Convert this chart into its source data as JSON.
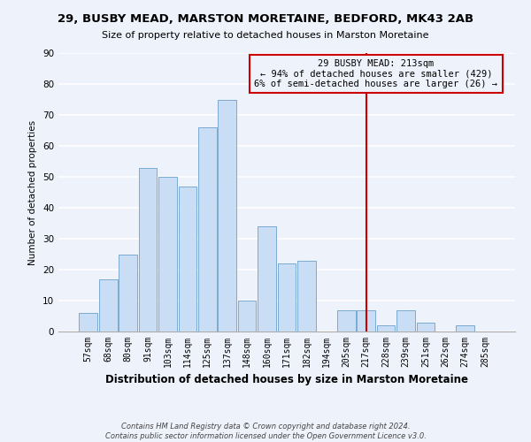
{
  "title": "29, BUSBY MEAD, MARSTON MORETAINE, BEDFORD, MK43 2AB",
  "subtitle": "Size of property relative to detached houses in Marston Moretaine",
  "xlabel": "Distribution of detached houses by size in Marston Moretaine",
  "ylabel": "Number of detached properties",
  "bin_labels": [
    "57sqm",
    "68sqm",
    "80sqm",
    "91sqm",
    "103sqm",
    "114sqm",
    "125sqm",
    "137sqm",
    "148sqm",
    "160sqm",
    "171sqm",
    "182sqm",
    "194sqm",
    "205sqm",
    "217sqm",
    "228sqm",
    "239sqm",
    "251sqm",
    "262sqm",
    "274sqm",
    "285sqm"
  ],
  "bar_heights": [
    6,
    17,
    25,
    53,
    50,
    47,
    66,
    75,
    10,
    34,
    22,
    23,
    0,
    7,
    7,
    2,
    7,
    3,
    0,
    2,
    0
  ],
  "bar_color": "#c9ddf5",
  "bar_edge_color": "#7aaad0",
  "ylim": [
    0,
    90
  ],
  "yticks": [
    0,
    10,
    20,
    30,
    40,
    50,
    60,
    70,
    80,
    90
  ],
  "vline_x": 14.0,
  "vline_color": "#cc0000",
  "annotation_text": "29 BUSBY MEAD: 213sqm\n← 94% of detached houses are smaller (429)\n6% of semi-detached houses are larger (26) →",
  "annotation_box_color": "#cc0000",
  "footer_line1": "Contains HM Land Registry data © Crown copyright and database right 2024.",
  "footer_line2": "Contains public sector information licensed under the Open Government Licence v3.0.",
  "background_color": "#eef2fb",
  "title_fontsize": 9.5,
  "subtitle_fontsize": 8,
  "ylabel_fontsize": 7.5,
  "xlabel_fontsize": 8.5,
  "tick_fontsize": 7,
  "annotation_fontsize": 7.5,
  "footer_fontsize": 6
}
